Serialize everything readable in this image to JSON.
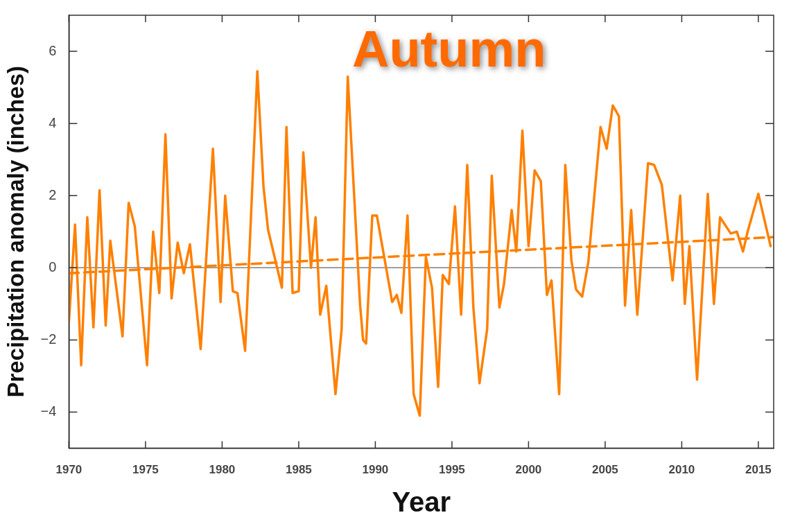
{
  "chart_data": {
    "type": "line",
    "title": "Autumn",
    "xlabel": "Year",
    "ylabel": "Precipitation anomaly (inches)",
    "xlim": [
      1970,
      2016
    ],
    "xticks": [
      1970,
      1975,
      1980,
      1985,
      1990,
      1995,
      2000,
      2005,
      2010,
      2015
    ],
    "ylim": [
      -5,
      7
    ],
    "yticks": [
      {
        "value": -4,
        "label": "−4"
      },
      {
        "value": -2,
        "label": "−2"
      },
      0,
      2,
      4,
      6
    ],
    "marker": "none",
    "ref_lines": [
      {
        "axis": "y",
        "value": 0,
        "color": "#808080"
      }
    ],
    "series": [
      {
        "color": "#ff8000",
        "line_style": "solid",
        "x": [
          1970.0,
          1970.4,
          1970.8,
          1971.2,
          1971.6,
          1972.0,
          1972.4,
          1972.7,
          1973.5,
          1973.9,
          1974.3,
          1975.1,
          1975.5,
          1975.9,
          1976.3,
          1976.7,
          1977.1,
          1977.5,
          1977.9,
          1978.6,
          1979.4,
          1979.9,
          1980.2,
          1980.7,
          1981.0,
          1981.5,
          1982.3,
          1982.7,
          1983.0,
          1983.9,
          1984.2,
          1984.6,
          1985.0,
          1985.3,
          1985.8,
          1986.1,
          1986.4,
          1986.8,
          1987.4,
          1987.8,
          1988.2,
          1989.0,
          1989.2,
          1989.4,
          1989.8,
          1990.1,
          1991.1,
          1991.4,
          1991.7,
          1992.1,
          1992.5,
          1992.9,
          1993.3,
          1993.7,
          1994.1,
          1994.4,
          1994.8,
          1995.2,
          1995.6,
          1996.0,
          1996.4,
          1996.8,
          1997.3,
          1997.6,
          1998.1,
          1998.4,
          1998.9,
          1999.2,
          1999.6,
          2000.0,
          2000.4,
          2000.8,
          2001.2,
          2001.5,
          2002.0,
          2002.4,
          2002.8,
          2003.1,
          2003.5,
          2003.9,
          2004.7,
          2005.1,
          2005.5,
          2005.9,
          2006.3,
          2006.7,
          2007.1,
          2007.8,
          2008.2,
          2008.7,
          2009.4,
          2009.9,
          2010.2,
          2010.5,
          2011.0,
          2011.7,
          2012.1,
          2012.5,
          2013.2,
          2013.6,
          2014.0,
          2014.3,
          2015.0,
          2015.8
        ],
        "values": [
          -1.5,
          1.2,
          -2.7,
          1.4,
          -1.65,
          2.15,
          -1.6,
          0.75,
          -1.9,
          1.8,
          1.15,
          -2.7,
          1.0,
          -0.7,
          3.7,
          -0.85,
          0.7,
          -0.15,
          0.65,
          -2.25,
          3.3,
          -0.95,
          2.0,
          -0.65,
          -0.7,
          -2.3,
          5.45,
          2.25,
          1.05,
          -0.55,
          3.9,
          -0.7,
          -0.65,
          3.2,
          0.0,
          1.4,
          -1.3,
          -0.5,
          -3.5,
          -1.7,
          5.3,
          -1.0,
          -2.0,
          -2.1,
          1.45,
          1.45,
          -0.95,
          -0.75,
          -1.25,
          1.45,
          -3.5,
          -4.1,
          0.3,
          -0.55,
          -3.3,
          -0.2,
          -0.45,
          1.7,
          -1.3,
          2.85,
          -1.1,
          -3.2,
          -1.7,
          2.55,
          -1.1,
          -0.45,
          1.6,
          0.45,
          3.8,
          0.6,
          2.7,
          2.4,
          -0.75,
          -0.35,
          -3.5,
          2.85,
          0.2,
          -0.6,
          -0.8,
          0.15,
          3.9,
          3.3,
          4.5,
          4.2,
          -1.05,
          1.6,
          -1.3,
          2.9,
          2.85,
          2.3,
          -0.35,
          2.0,
          -1.0,
          0.6,
          -3.1,
          2.05,
          -1.0,
          1.4,
          0.95,
          1.0,
          0.45,
          1.0,
          2.05,
          0.6
        ]
      },
      {
        "type": "line",
        "color": "#ff8000",
        "line_style": "dashed",
        "x": [
          1970,
          2016
        ],
        "values": [
          -0.15,
          0.85
        ]
      }
    ]
  }
}
